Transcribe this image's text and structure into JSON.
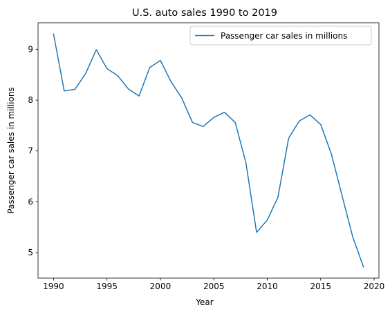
{
  "chart_data": {
    "type": "line",
    "title": "U.S. auto sales 1990 to 2019",
    "xlabel": "Year",
    "ylabel": "Passenger car sales in millions",
    "xlim": [
      1988.55,
      2020.45
    ],
    "ylim": [
      4.5,
      9.52
    ],
    "x_ticks": [
      1990,
      1995,
      2000,
      2005,
      2010,
      2015,
      2020
    ],
    "y_ticks": [
      5,
      6,
      7,
      8,
      9
    ],
    "grid": false,
    "legend_position": "top-right",
    "series": [
      {
        "name": "Passenger car sales in millions",
        "color": "#1f77b4",
        "x": [
          1990,
          1991,
          1992,
          1993,
          1994,
          1995,
          1996,
          1997,
          1998,
          1999,
          2000,
          2001,
          2002,
          2003,
          2004,
          2005,
          2006,
          2007,
          2008,
          2009,
          2010,
          2011,
          2012,
          2013,
          2014,
          2015,
          2016,
          2017,
          2018,
          2019
        ],
        "values": [
          9.3,
          8.18,
          8.21,
          8.52,
          8.99,
          8.62,
          8.48,
          8.22,
          8.08,
          8.64,
          8.78,
          8.36,
          8.04,
          7.56,
          7.48,
          7.66,
          7.76,
          7.56,
          6.77,
          5.4,
          5.64,
          6.09,
          7.25,
          7.59,
          7.71,
          7.52,
          6.94,
          6.12,
          5.31,
          4.72
        ]
      }
    ]
  }
}
